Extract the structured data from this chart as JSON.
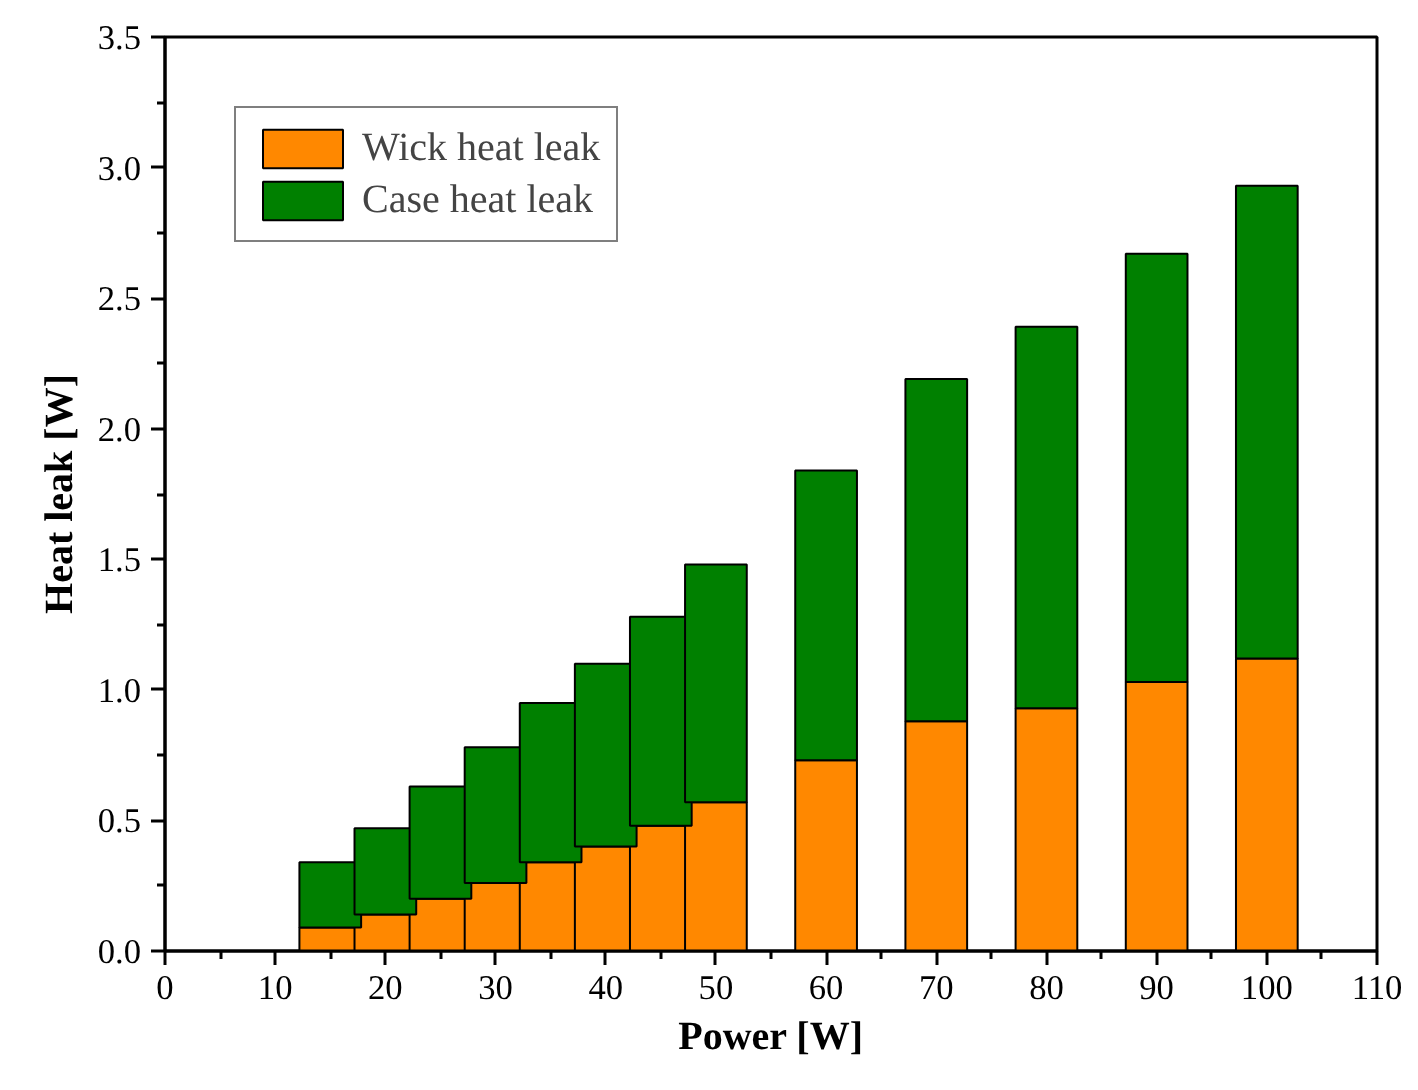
{
  "chart_data": {
    "type": "bar",
    "stacked": true,
    "xlabel": "Power [W]",
    "ylabel": "Heat leak [W]",
    "x": [
      15,
      20,
      25,
      30,
      35,
      40,
      45,
      50,
      60,
      70,
      80,
      90,
      100
    ],
    "series": [
      {
        "name": "Wick heat leak",
        "color": "#ff8800",
        "values": [
          0.09,
          0.14,
          0.2,
          0.26,
          0.34,
          0.4,
          0.48,
          0.57,
          0.73,
          0.88,
          0.93,
          1.03,
          1.12
        ]
      },
      {
        "name": "Case heat leak",
        "color": "#008000",
        "values": [
          0.25,
          0.33,
          0.43,
          0.52,
          0.61,
          0.7,
          0.8,
          0.91,
          1.11,
          1.31,
          1.46,
          1.64,
          1.81
        ]
      }
    ],
    "xlim": [
      0,
      110
    ],
    "xticks": [
      0,
      10,
      20,
      30,
      40,
      50,
      60,
      70,
      80,
      90,
      100,
      110
    ],
    "ylim": [
      0,
      3.5
    ],
    "yticks": [
      {
        "value": 0,
        "label": "0.0"
      },
      {
        "value": 0.5,
        "label": "0.5"
      },
      {
        "value": 1,
        "label": "1.0"
      },
      {
        "value": 1.5,
        "label": "1.5"
      },
      {
        "value": 2,
        "label": "2.0"
      },
      {
        "value": 2.5,
        "label": "2.5"
      },
      {
        "value": 3,
        "label": "3.0"
      },
      {
        "value": 3.5,
        "label": "3.5"
      }
    ],
    "grid": false,
    "legend": "top left"
  }
}
